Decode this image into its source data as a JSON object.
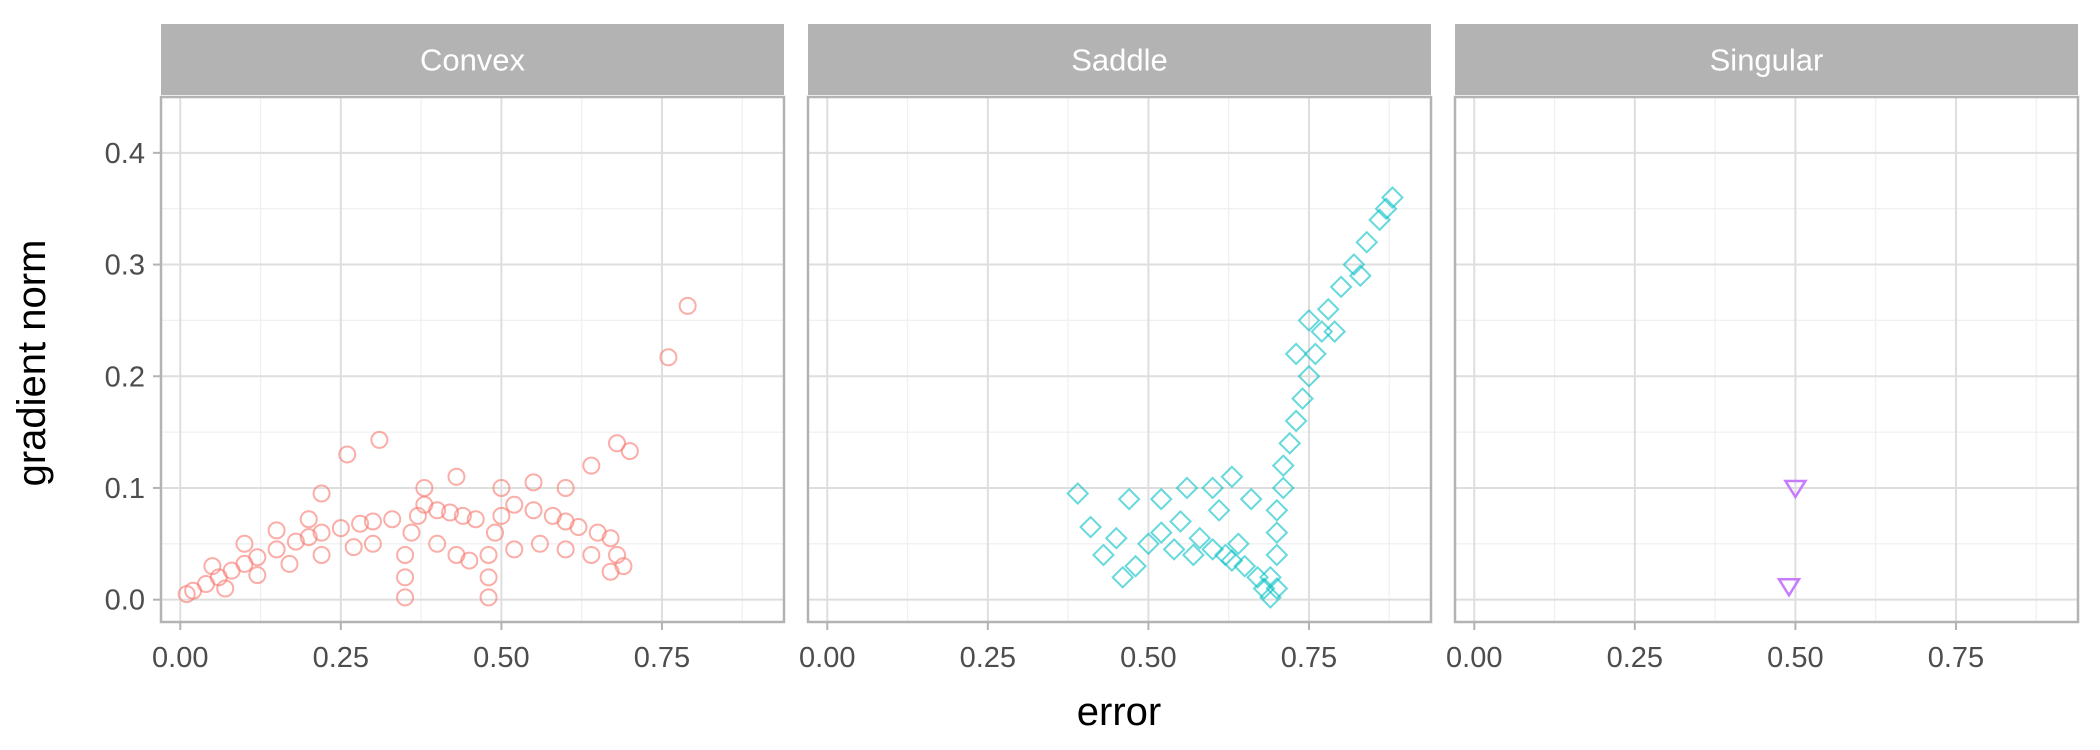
{
  "chart_data": {
    "type": "scatter",
    "xlabel": "error",
    "ylabel": "gradient norm",
    "xlim": [
      -0.03,
      0.94
    ],
    "ylim": [
      -0.02,
      0.45
    ],
    "x_ticks": [
      0.0,
      0.25,
      0.5,
      0.75
    ],
    "x_tick_labels": [
      "0.00",
      "0.25",
      "0.50",
      "0.75"
    ],
    "y_ticks": [
      0.0,
      0.1,
      0.2,
      0.3,
      0.4
    ],
    "y_tick_labels": [
      "0.0",
      "0.1",
      "0.2",
      "0.3",
      "0.4"
    ],
    "grid": true,
    "legend": "none",
    "facets": [
      {
        "name": "Convex",
        "color": "#F8766D",
        "marker": "circle",
        "points": [
          [
            0.01,
            0.005
          ],
          [
            0.02,
            0.008
          ],
          [
            0.04,
            0.014
          ],
          [
            0.06,
            0.02
          ],
          [
            0.08,
            0.026
          ],
          [
            0.1,
            0.032
          ],
          [
            0.12,
            0.038
          ],
          [
            0.15,
            0.045
          ],
          [
            0.18,
            0.052
          ],
          [
            0.2,
            0.056
          ],
          [
            0.22,
            0.06
          ],
          [
            0.25,
            0.064
          ],
          [
            0.28,
            0.068
          ],
          [
            0.3,
            0.07
          ],
          [
            0.33,
            0.072
          ],
          [
            0.05,
            0.03
          ],
          [
            0.1,
            0.05
          ],
          [
            0.15,
            0.062
          ],
          [
            0.2,
            0.072
          ],
          [
            0.22,
            0.095
          ],
          [
            0.26,
            0.13
          ],
          [
            0.31,
            0.143
          ],
          [
            0.07,
            0.01
          ],
          [
            0.12,
            0.022
          ],
          [
            0.17,
            0.032
          ],
          [
            0.22,
            0.04
          ],
          [
            0.27,
            0.047
          ],
          [
            0.3,
            0.05
          ],
          [
            0.35,
            0.002
          ],
          [
            0.35,
            0.02
          ],
          [
            0.35,
            0.04
          ],
          [
            0.36,
            0.06
          ],
          [
            0.37,
            0.075
          ],
          [
            0.38,
            0.085
          ],
          [
            0.4,
            0.08
          ],
          [
            0.42,
            0.078
          ],
          [
            0.44,
            0.075
          ],
          [
            0.46,
            0.072
          ],
          [
            0.38,
            0.1
          ],
          [
            0.43,
            0.11
          ],
          [
            0.4,
            0.05
          ],
          [
            0.43,
            0.04
          ],
          [
            0.45,
            0.035
          ],
          [
            0.48,
            0.002
          ],
          [
            0.48,
            0.02
          ],
          [
            0.48,
            0.04
          ],
          [
            0.49,
            0.06
          ],
          [
            0.5,
            0.075
          ],
          [
            0.52,
            0.085
          ],
          [
            0.55,
            0.08
          ],
          [
            0.58,
            0.075
          ],
          [
            0.6,
            0.07
          ],
          [
            0.62,
            0.065
          ],
          [
            0.65,
            0.06
          ],
          [
            0.67,
            0.055
          ],
          [
            0.68,
            0.04
          ],
          [
            0.69,
            0.03
          ],
          [
            0.5,
            0.1
          ],
          [
            0.55,
            0.105
          ],
          [
            0.6,
            0.1
          ],
          [
            0.64,
            0.12
          ],
          [
            0.68,
            0.14
          ],
          [
            0.7,
            0.133
          ],
          [
            0.52,
            0.045
          ],
          [
            0.56,
            0.05
          ],
          [
            0.6,
            0.045
          ],
          [
            0.64,
            0.04
          ],
          [
            0.67,
            0.025
          ],
          [
            0.76,
            0.217
          ],
          [
            0.79,
            0.263
          ]
        ]
      },
      {
        "name": "Saddle",
        "color": "#00BFC4",
        "marker": "diamond",
        "points": [
          [
            0.39,
            0.095
          ],
          [
            0.41,
            0.065
          ],
          [
            0.43,
            0.04
          ],
          [
            0.45,
            0.055
          ],
          [
            0.47,
            0.09
          ],
          [
            0.48,
            0.03
          ],
          [
            0.5,
            0.05
          ],
          [
            0.52,
            0.06
          ],
          [
            0.54,
            0.045
          ],
          [
            0.55,
            0.07
          ],
          [
            0.57,
            0.04
          ],
          [
            0.58,
            0.055
          ],
          [
            0.6,
            0.045
          ],
          [
            0.61,
            0.08
          ],
          [
            0.62,
            0.04
          ],
          [
            0.63,
            0.035
          ],
          [
            0.64,
            0.05
          ],
          [
            0.65,
            0.03
          ],
          [
            0.66,
            0.09
          ],
          [
            0.67,
            0.02
          ],
          [
            0.68,
            0.01
          ],
          [
            0.69,
            0.002
          ],
          [
            0.69,
            0.02
          ],
          [
            0.7,
            0.01
          ],
          [
            0.7,
            0.04
          ],
          [
            0.7,
            0.06
          ],
          [
            0.7,
            0.08
          ],
          [
            0.71,
            0.1
          ],
          [
            0.71,
            0.12
          ],
          [
            0.72,
            0.14
          ],
          [
            0.73,
            0.16
          ],
          [
            0.74,
            0.18
          ],
          [
            0.75,
            0.2
          ],
          [
            0.76,
            0.22
          ],
          [
            0.77,
            0.24
          ],
          [
            0.78,
            0.26
          ],
          [
            0.8,
            0.28
          ],
          [
            0.82,
            0.3
          ],
          [
            0.84,
            0.32
          ],
          [
            0.86,
            0.34
          ],
          [
            0.88,
            0.36
          ],
          [
            0.87,
            0.35
          ],
          [
            0.73,
            0.22
          ],
          [
            0.75,
            0.25
          ],
          [
            0.79,
            0.24
          ],
          [
            0.83,
            0.29
          ],
          [
            0.46,
            0.02
          ],
          [
            0.52,
            0.09
          ],
          [
            0.56,
            0.1
          ],
          [
            0.6,
            0.1
          ],
          [
            0.63,
            0.11
          ]
        ]
      },
      {
        "name": "Singular",
        "color": "#C77CFF",
        "marker": "triangle-down",
        "points": [
          [
            0.5,
            0.1
          ],
          [
            0.49,
            0.012
          ]
        ]
      }
    ]
  }
}
